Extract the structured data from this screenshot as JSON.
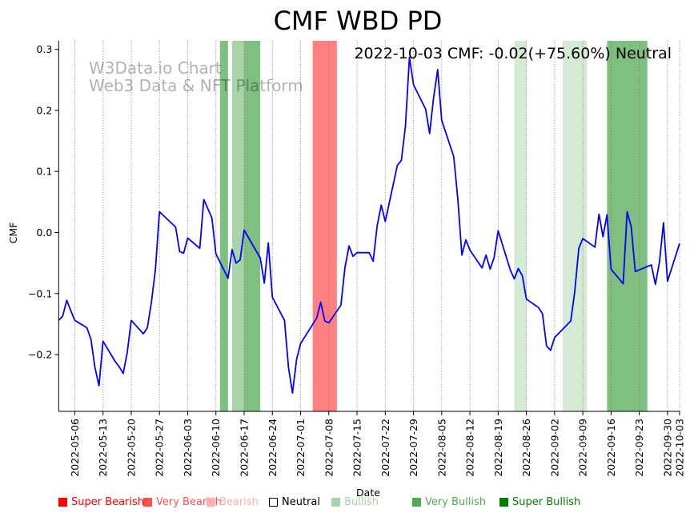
{
  "chart_data": {
    "type": "line",
    "title": "CMF WBD PD",
    "xlabel": "Date",
    "ylabel": "CMF",
    "xlim": [
      "2022-05-02",
      "2022-10-03"
    ],
    "ylim": [
      -0.293,
      0.314
    ],
    "grid": "vertical-dotted",
    "yticks": [
      -0.2,
      -0.1,
      0.0,
      0.1,
      0.2,
      0.3
    ],
    "ytick_labels": [
      "−0.2",
      "−0.1",
      "0.0",
      "0.1",
      "0.2",
      "0.3"
    ],
    "xticks": [
      "2022-05-06",
      "2022-05-13",
      "2022-05-20",
      "2022-05-27",
      "2022-06-03",
      "2022-06-10",
      "2022-06-17",
      "2022-06-24",
      "2022-07-01",
      "2022-07-08",
      "2022-07-15",
      "2022-07-22",
      "2022-07-29",
      "2022-08-05",
      "2022-08-12",
      "2022-08-19",
      "2022-08-26",
      "2022-09-02",
      "2022-09-09",
      "2022-09-16",
      "2022-09-23",
      "2022-09-30",
      "2022-10-03"
    ],
    "annotation": "2022-10-03 CMF: -0.02(+75.60%) Neutral",
    "watermark": [
      "W3Data.io Chart",
      "Web3 Data & NFT Platform"
    ],
    "series": [
      {
        "name": "CMF",
        "color": "#0000ff",
        "points": [
          [
            "2022-05-02",
            -0.144
          ],
          [
            "2022-05-03",
            -0.137
          ],
          [
            "2022-05-04",
            -0.111
          ],
          [
            "2022-05-05",
            -0.128
          ],
          [
            "2022-05-06",
            -0.144
          ],
          [
            "2022-05-09",
            -0.156
          ],
          [
            "2022-05-10",
            -0.175
          ],
          [
            "2022-05-11",
            -0.221
          ],
          [
            "2022-05-12",
            -0.251
          ],
          [
            "2022-05-13",
            -0.178
          ],
          [
            "2022-05-16",
            -0.211
          ],
          [
            "2022-05-17",
            -0.22
          ],
          [
            "2022-05-18",
            -0.231
          ],
          [
            "2022-05-19",
            -0.197
          ],
          [
            "2022-05-20",
            -0.144
          ],
          [
            "2022-05-23",
            -0.166
          ],
          [
            "2022-05-24",
            -0.156
          ],
          [
            "2022-05-25",
            -0.114
          ],
          [
            "2022-05-26",
            -0.06
          ],
          [
            "2022-05-27",
            0.034
          ],
          [
            "2022-05-31",
            0.009
          ],
          [
            "2022-06-01",
            -0.031
          ],
          [
            "2022-06-02",
            -0.034
          ],
          [
            "2022-06-03",
            -0.009
          ],
          [
            "2022-06-06",
            -0.026
          ],
          [
            "2022-06-07",
            0.054
          ],
          [
            "2022-06-09",
            0.024
          ],
          [
            "2022-06-10",
            -0.035
          ],
          [
            "2022-06-13",
            -0.075
          ],
          [
            "2022-06-14",
            -0.028
          ],
          [
            "2022-06-15",
            -0.05
          ],
          [
            "2022-06-16",
            -0.045
          ],
          [
            "2022-06-17",
            0.004
          ],
          [
            "2022-06-21",
            -0.042
          ],
          [
            "2022-06-22",
            -0.083
          ],
          [
            "2022-06-23",
            -0.017
          ],
          [
            "2022-06-24",
            -0.106
          ],
          [
            "2022-06-27",
            -0.144
          ],
          [
            "2022-06-28",
            -0.221
          ],
          [
            "2022-06-29",
            -0.263
          ],
          [
            "2022-06-30",
            -0.208
          ],
          [
            "2022-07-01",
            -0.182
          ],
          [
            "2022-07-05",
            -0.14
          ],
          [
            "2022-07-06",
            -0.114
          ],
          [
            "2022-07-07",
            -0.145
          ],
          [
            "2022-07-08",
            -0.148
          ],
          [
            "2022-07-11",
            -0.119
          ],
          [
            "2022-07-12",
            -0.058
          ],
          [
            "2022-07-13",
            -0.022
          ],
          [
            "2022-07-14",
            -0.039
          ],
          [
            "2022-07-15",
            -0.033
          ],
          [
            "2022-07-18",
            -0.033
          ],
          [
            "2022-07-19",
            -0.047
          ],
          [
            "2022-07-20",
            0.011
          ],
          [
            "2022-07-21",
            0.045
          ],
          [
            "2022-07-22",
            0.018
          ],
          [
            "2022-07-25",
            0.11
          ],
          [
            "2022-07-26",
            0.118
          ],
          [
            "2022-07-27",
            0.174
          ],
          [
            "2022-07-28",
            0.287
          ],
          [
            "2022-07-29",
            0.242
          ],
          [
            "2022-08-01",
            0.202
          ],
          [
            "2022-08-02",
            0.162
          ],
          [
            "2022-08-03",
            0.221
          ],
          [
            "2022-08-04",
            0.267
          ],
          [
            "2022-08-05",
            0.184
          ],
          [
            "2022-08-08",
            0.124
          ],
          [
            "2022-08-09",
            0.054
          ],
          [
            "2022-08-10",
            -0.037
          ],
          [
            "2022-08-11",
            -0.012
          ],
          [
            "2022-08-12",
            -0.029
          ],
          [
            "2022-08-15",
            -0.058
          ],
          [
            "2022-08-16",
            -0.037
          ],
          [
            "2022-08-17",
            -0.06
          ],
          [
            "2022-08-18",
            -0.041
          ],
          [
            "2022-08-19",
            0.003
          ],
          [
            "2022-08-22",
            -0.061
          ],
          [
            "2022-08-23",
            -0.076
          ],
          [
            "2022-08-24",
            -0.059
          ],
          [
            "2022-08-25",
            -0.071
          ],
          [
            "2022-08-26",
            -0.109
          ],
          [
            "2022-08-29",
            -0.123
          ],
          [
            "2022-08-30",
            -0.133
          ],
          [
            "2022-08-31",
            -0.186
          ],
          [
            "2022-09-01",
            -0.193
          ],
          [
            "2022-09-02",
            -0.172
          ],
          [
            "2022-09-06",
            -0.145
          ],
          [
            "2022-09-07",
            -0.097
          ],
          [
            "2022-09-08",
            -0.026
          ],
          [
            "2022-09-09",
            -0.01
          ],
          [
            "2022-09-12",
            -0.024
          ],
          [
            "2022-09-13",
            0.03
          ],
          [
            "2022-09-14",
            -0.007
          ],
          [
            "2022-09-15",
            0.029
          ],
          [
            "2022-09-16",
            -0.06
          ],
          [
            "2022-09-19",
            -0.084
          ],
          [
            "2022-09-20",
            0.034
          ],
          [
            "2022-09-21",
            0.009
          ],
          [
            "2022-09-22",
            -0.064
          ],
          [
            "2022-09-26",
            -0.053
          ],
          [
            "2022-09-27",
            -0.085
          ],
          [
            "2022-09-28",
            -0.049
          ],
          [
            "2022-09-29",
            0.016
          ],
          [
            "2022-09-30",
            -0.08
          ],
          [
            "2022-10-03",
            -0.018
          ]
        ]
      }
    ],
    "bands": [
      {
        "signal": "Very Bullish",
        "start": "2022-06-11",
        "end": "2022-06-13",
        "color": "#7fbf7f"
      },
      {
        "signal": "Bullish",
        "start": "2022-06-14",
        "end": "2022-06-17",
        "color": "#a8d4a8"
      },
      {
        "signal": "Very Bullish",
        "start": "2022-06-17",
        "end": "2022-06-21",
        "color": "#7fbf7f"
      },
      {
        "signal": "Very Bearish",
        "start": "2022-07-04",
        "end": "2022-07-10",
        "color": "#ff8080"
      },
      {
        "signal": "Bullish",
        "start": "2022-08-23",
        "end": "2022-08-26",
        "color": "#d4ead4"
      },
      {
        "signal": "Bullish",
        "start": "2022-09-04",
        "end": "2022-09-10",
        "color": "#d4ead4"
      },
      {
        "signal": "Very Bullish",
        "start": "2022-09-15",
        "end": "2022-09-25",
        "color": "#7fbf7f"
      }
    ],
    "legend": {
      "placement": "bottom",
      "items": [
        {
          "label": "Super Bearish",
          "color": "#ff0000",
          "text_color": "#ff0000"
        },
        {
          "label": "Very Bearish",
          "color": "#ff5050",
          "text_color": "#ff5050"
        },
        {
          "label": "Bearish",
          "color": "#ffb0b0",
          "text_color": "#ffb0b0"
        },
        {
          "label": "Neutral",
          "color": "#ffffff",
          "text_color": "#000000"
        },
        {
          "label": "Bullish",
          "color": "#a8d4a8",
          "text_color": "#a8d4a8"
        },
        {
          "label": "Very Bullish",
          "color": "#50aa50",
          "text_color": "#50aa50"
        },
        {
          "label": "Super Bullish",
          "color": "#008000",
          "text_color": "#008000"
        }
      ]
    }
  }
}
